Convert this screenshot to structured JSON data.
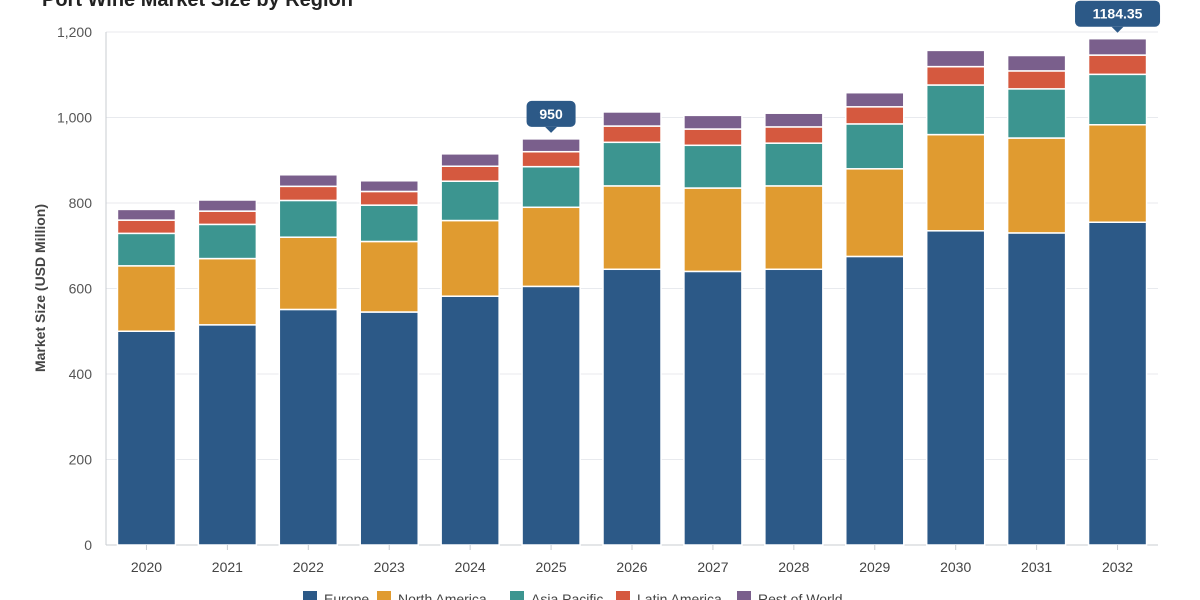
{
  "chart_data": {
    "type": "bar",
    "stacked": true,
    "title": "Port Wine Market Size by Region",
    "xlabel": "",
    "ylabel": "Market Size (USD Million)",
    "ylim": [
      0,
      1200
    ],
    "yticks": [
      0,
      200,
      400,
      600,
      800,
      1000,
      1200
    ],
    "ytick_labels": [
      "0",
      "200",
      "400",
      "600",
      "800",
      "1,000",
      "1,200"
    ],
    "grid": true,
    "legend": "bottom",
    "categories": [
      "2020",
      "2021",
      "2022",
      "2023",
      "2024",
      "2025",
      "2026",
      "2027",
      "2028",
      "2029",
      "2030",
      "2031",
      "2032"
    ],
    "series": [
      {
        "name": "Europe",
        "color": "#2c5987",
        "values": [
          500,
          515,
          551,
          545,
          582,
          605,
          645,
          640,
          645,
          675,
          735,
          730,
          755
        ]
      },
      {
        "name": "North America",
        "color": "#e09b30",
        "values": [
          153,
          155,
          169,
          165,
          177,
          185,
          195,
          195,
          195,
          205,
          225,
          222,
          228
        ]
      },
      {
        "name": "Asia Pacific",
        "color": "#3c9590",
        "values": [
          76,
          80,
          86,
          85,
          92,
          95,
          102,
          100,
          100,
          105,
          116,
          115,
          118
        ]
      },
      {
        "name": "Latin America",
        "color": "#d5593f",
        "values": [
          31,
          31,
          33,
          32,
          35,
          35,
          38,
          38,
          38,
          40,
          43,
          42,
          45
        ]
      },
      {
        "name": "Rest of World",
        "color": "#7a5f8c",
        "values": [
          25,
          26,
          27,
          25,
          29,
          30,
          33,
          32,
          32,
          33,
          38,
          36,
          38.35
        ]
      }
    ],
    "annotations": [
      {
        "category": "2025",
        "text": "950"
      },
      {
        "category": "2032",
        "text": "1184.35"
      }
    ]
  }
}
